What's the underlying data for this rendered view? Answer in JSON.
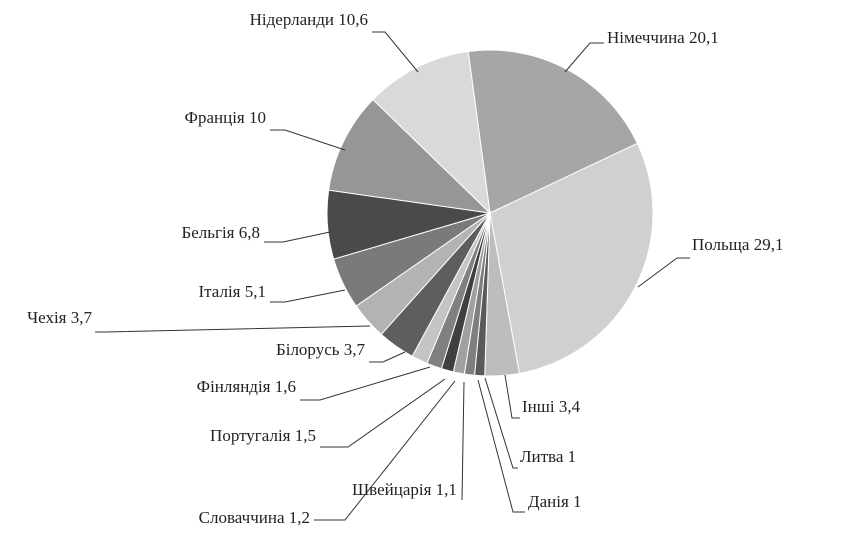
{
  "chart_data": {
    "type": "pie",
    "categories": [
      "Німеччина",
      "Польща",
      "Інші",
      "Литва",
      "Данія",
      "Швейцарія",
      "Словаччина",
      "Португалія",
      "Фінляндія",
      "Білорусь",
      "Чехія",
      "Італія",
      "Бельгія",
      "Франція",
      "Нідерланди"
    ],
    "values": [
      20.1,
      29.1,
      3.4,
      1,
      1,
      1.1,
      1.2,
      1.5,
      1.6,
      3.7,
      3.7,
      5.1,
      6.8,
      10,
      10.6
    ],
    "value_labels": [
      "20,1",
      "29,1",
      "3,4",
      "1",
      "1",
      "1,1",
      "1,2",
      "1,5",
      "1,6",
      "3,7",
      "3,7",
      "5,1",
      "6,8",
      "10",
      "10,6"
    ],
    "colors": [
      "#a6a6a6",
      "#d0d0d0",
      "#bdbdbd",
      "#5a5a5a",
      "#7f7f7f",
      "#a0a0a0",
      "#3f3f3f",
      "#808080",
      "#c4c4c4",
      "#5e5e5e",
      "#b3b3b3",
      "#7a7a7a",
      "#4a4a4a",
      "#969696",
      "#d9d9d9"
    ]
  }
}
